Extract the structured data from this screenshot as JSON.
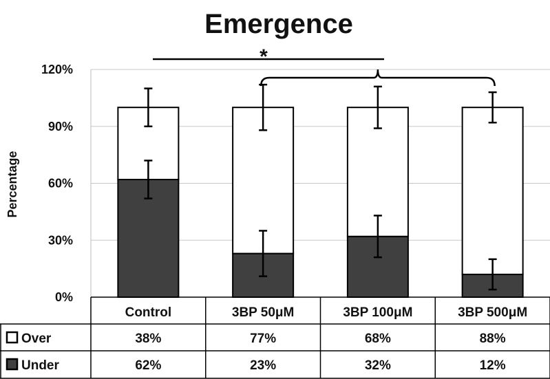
{
  "chart_data": {
    "type": "bar",
    "stacked": true,
    "title": "Emergence",
    "ylabel": "Percentage",
    "xlabel": "",
    "ylim": [
      0,
      120
    ],
    "yticks": [
      0,
      30,
      60,
      90,
      120
    ],
    "ytick_labels": [
      "0%",
      "30%",
      "60%",
      "90%",
      "120%"
    ],
    "grid": true,
    "categories": [
      "Control",
      "3BP 50μM",
      "3BP 100μM",
      "3BP 500μM"
    ],
    "series": [
      {
        "name": "Under",
        "color": "#404040",
        "values": [
          62,
          23,
          32,
          12
        ],
        "labels": [
          "62%",
          "23%",
          "32%",
          "12%"
        ],
        "error": [
          10,
          12,
          11,
          8
        ]
      },
      {
        "name": "Over",
        "color": "#ffffff",
        "values": [
          38,
          77,
          68,
          88
        ],
        "labels": [
          "38%",
          "77%",
          "68%",
          "88%"
        ],
        "error": [
          10,
          12,
          11,
          8
        ]
      }
    ],
    "data_table": true,
    "annotations": [
      {
        "text": "*",
        "type": "significance",
        "from": "Control",
        "to": [
          "3BP 50μM",
          "3BP 100μM",
          "3BP 500μM"
        ]
      }
    ]
  }
}
